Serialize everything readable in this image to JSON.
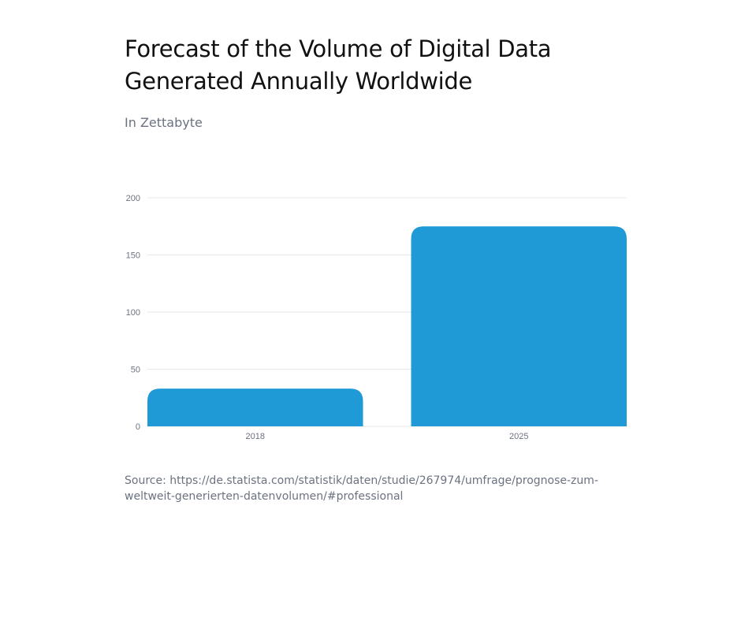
{
  "title": "Forecast of the Volume of Digital Data Generated Annually Worldwide",
  "subtitle": "In Zettabyte",
  "source": "Source: https://de.statista.com/statistik/daten/studie/267974/umfrage/prognose-zum-weltweit-generierten-datenvolumen/#professional",
  "colors": {
    "bar": "#1f9ad6",
    "grid": "#e5e7eb",
    "tick": "#6b7280"
  },
  "chart_data": {
    "type": "bar",
    "title": "Forecast of the Volume of Digital Data Generated Annually Worldwide",
    "subtitle": "In Zettabyte",
    "categories": [
      "2018",
      "2025"
    ],
    "values": [
      33,
      175
    ],
    "ylim": [
      0,
      200
    ],
    "yticks": [
      0,
      50,
      100,
      150,
      200
    ],
    "grid": true,
    "xlabel": "",
    "ylabel": ""
  }
}
